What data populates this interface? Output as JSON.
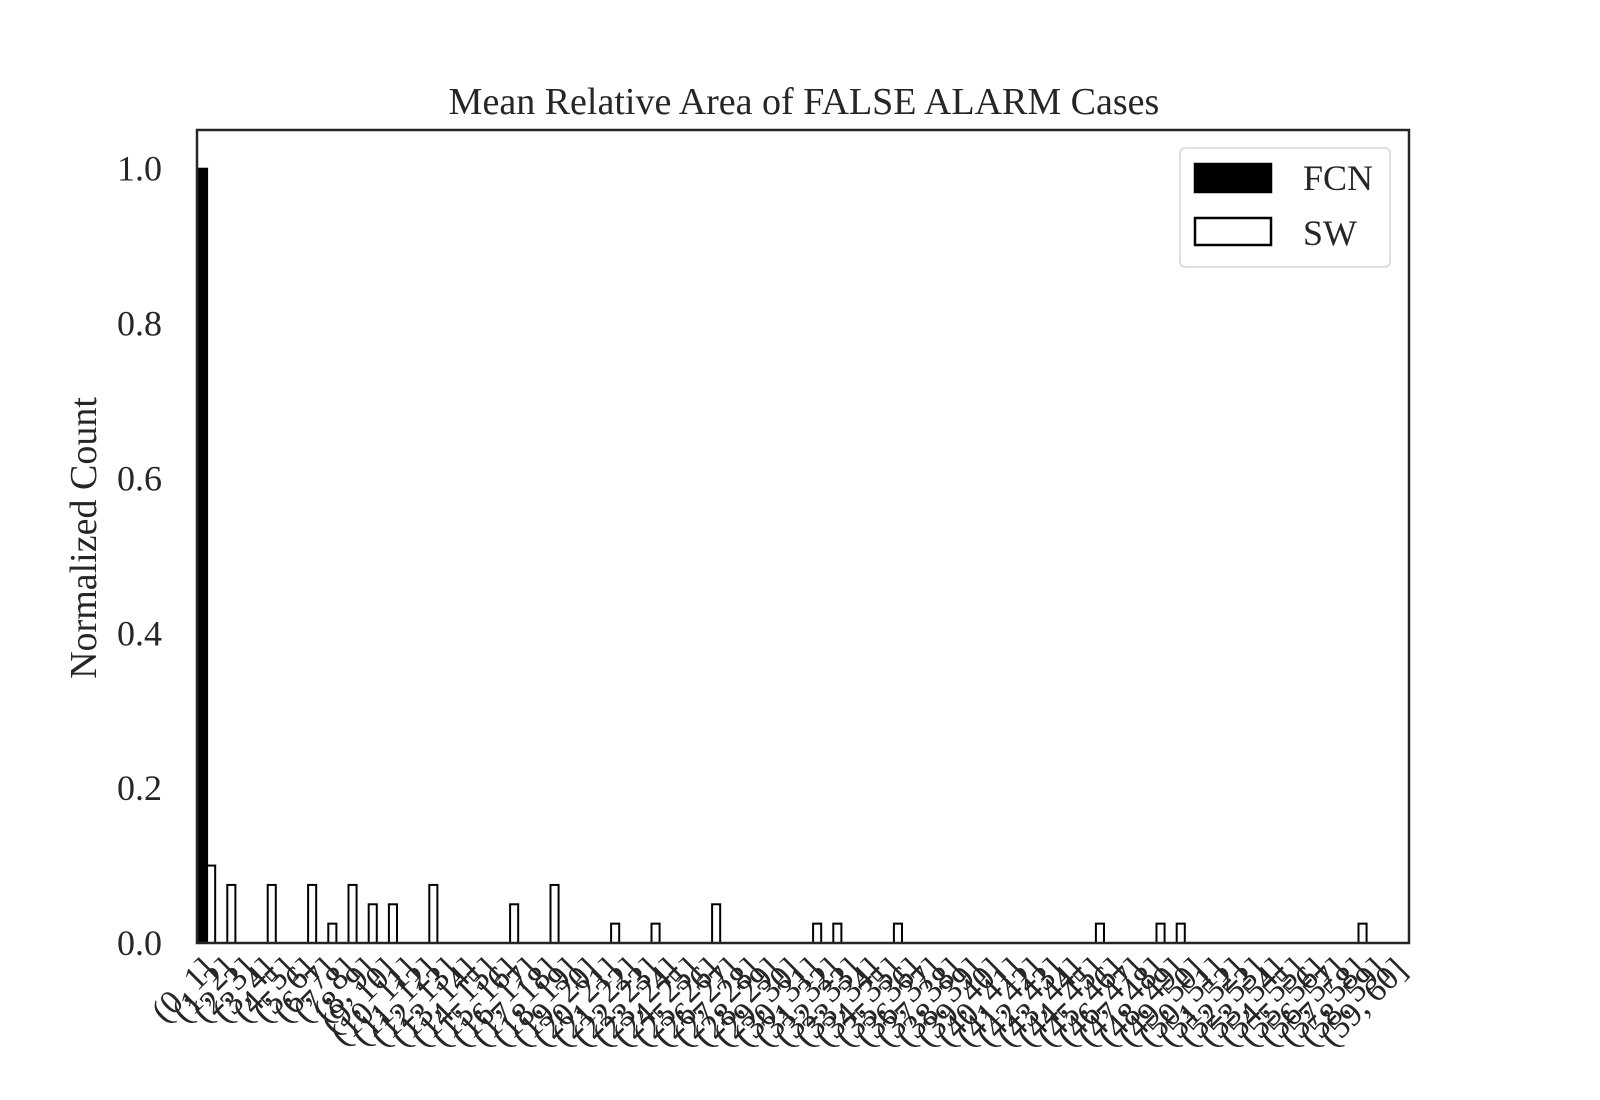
{
  "chart_data": {
    "type": "bar",
    "title": "Mean Relative Area of FALSE ALARM Cases",
    "xlabel": "",
    "ylabel": "Normalized Count",
    "ylim": [
      0,
      1.05
    ],
    "yticks": [
      "0.0",
      "0.2",
      "0.4",
      "0.6",
      "0.8",
      "1.0"
    ],
    "grid": false,
    "legend_position": "top-right",
    "categories": [
      "(0, 1]",
      "(1, 2]",
      "(2, 3]",
      "(3, 4]",
      "(4, 5]",
      "(5, 6]",
      "(6, 7]",
      "(7, 8]",
      "(8, 9]",
      "(9, 10]",
      "(10, 11]",
      "(11, 12]",
      "(12, 13]",
      "(13, 14]",
      "(14, 15]",
      "(15, 16]",
      "(16, 17]",
      "(17, 18]",
      "(18, 19]",
      "(19, 20]",
      "(20, 21]",
      "(21, 22]",
      "(22, 23]",
      "(23, 24]",
      "(24, 25]",
      "(25, 26]",
      "(26, 27]",
      "(27, 28]",
      "(28, 29]",
      "(29, 30]",
      "(30, 31]",
      "(31, 32]",
      "(32, 33]",
      "(33, 34]",
      "(34, 35]",
      "(35, 36]",
      "(36, 37]",
      "(37, 38]",
      "(38, 39]",
      "(39, 40]",
      "(40, 41]",
      "(41, 42]",
      "(42, 43]",
      "(43, 44]",
      "(44, 45]",
      "(45, 46]",
      "(46, 47]",
      "(47, 48]",
      "(48, 49]",
      "(49, 50]",
      "(50, 51]",
      "(51, 52]",
      "(52, 53]",
      "(53, 54]",
      "(54, 55]",
      "(55, 56]",
      "(56, 57]",
      "(57, 58]",
      "(58, 59]",
      "(59, 60]"
    ],
    "series": [
      {
        "name": "FCN",
        "fill": "#000000",
        "stroke": "#000000",
        "values": [
          1.0,
          0,
          0,
          0,
          0,
          0,
          0,
          0,
          0,
          0,
          0,
          0,
          0,
          0,
          0,
          0,
          0,
          0,
          0,
          0,
          0,
          0,
          0,
          0,
          0,
          0,
          0,
          0,
          0,
          0,
          0,
          0,
          0,
          0,
          0,
          0,
          0,
          0,
          0,
          0,
          0,
          0,
          0,
          0,
          0,
          0,
          0,
          0,
          0,
          0,
          0,
          0,
          0,
          0,
          0,
          0,
          0,
          0,
          0,
          0
        ]
      },
      {
        "name": "SW",
        "fill": "#ffffff",
        "stroke": "#000000",
        "values": [
          0.1,
          0.075,
          0,
          0.075,
          0,
          0.075,
          0.025,
          0.075,
          0.05,
          0.05,
          0,
          0.075,
          0,
          0,
          0,
          0.05,
          0,
          0.075,
          0,
          0,
          0.025,
          0,
          0.025,
          0,
          0,
          0.05,
          0,
          0,
          0,
          0,
          0.025,
          0.025,
          0,
          0,
          0.025,
          0,
          0,
          0,
          0,
          0,
          0,
          0,
          0,
          0,
          0.025,
          0,
          0,
          0.025,
          0.025,
          0,
          0,
          0,
          0,
          0,
          0,
          0,
          0,
          0.025,
          0,
          0
        ]
      }
    ]
  }
}
